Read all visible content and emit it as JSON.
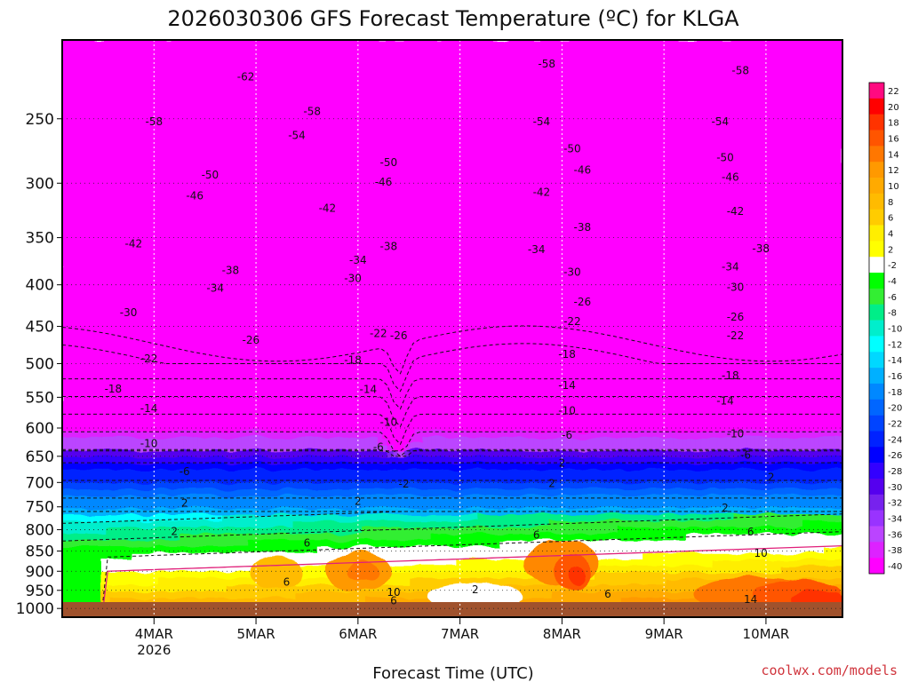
{
  "chart_data": {
    "type": "heatmap",
    "title": "2026030306 GFS Forecast Temperature (ºC) for KLGA",
    "xlabel": "Forecast Time (UTC)",
    "ylabel": "",
    "credit": "coolwx.com/models",
    "x_ticks": [
      {
        "label": "4MAR",
        "sublabel": "2026",
        "day": 4
      },
      {
        "label": "5MAR",
        "day": 5
      },
      {
        "label": "6MAR",
        "day": 6
      },
      {
        "label": "7MAR",
        "day": 7
      },
      {
        "label": "8MAR",
        "day": 8
      },
      {
        "label": "9MAR",
        "day": 9
      },
      {
        "label": "10MAR",
        "day": 10
      }
    ],
    "xlim_day": [
      3.1,
      10.75
    ],
    "y_ticks": [
      "250",
      "300",
      "350",
      "400",
      "450",
      "500",
      "550",
      "600",
      "650",
      "700",
      "750",
      "800",
      "850",
      "900",
      "950",
      "1000"
    ],
    "y_scale": "pressure (log)",
    "ylim_hpa": [
      1025,
      200
    ],
    "colorbar": {
      "levels": [
        22,
        20,
        18,
        16,
        14,
        12,
        10,
        8,
        6,
        4,
        2,
        -2,
        -4,
        -6,
        -8,
        -10,
        -12,
        -14,
        -16,
        -18,
        -20,
        -22,
        -24,
        -26,
        -28,
        -30,
        -32,
        -34,
        -36,
        -38,
        -40
      ],
      "colors": [
        "#ff0a80",
        "#ff0000",
        "#ff3300",
        "#ff5500",
        "#ff7700",
        "#ff9900",
        "#ffaa00",
        "#ffbb00",
        "#ffcc00",
        "#ffee00",
        "#ffff00",
        "#ffffff",
        "#00ff00",
        "#33ee33",
        "#00ee88",
        "#00eecc",
        "#00ffff",
        "#00d8ff",
        "#00b0ff",
        "#0088ff",
        "#0066ff",
        "#0044ff",
        "#0022ff",
        "#0000ff",
        "#3300ff",
        "#5500ee",
        "#7722ee",
        "#9933ff",
        "#bb44ff",
        "#dd22ff",
        "#ff00ff"
      ]
    },
    "contour_labels": [
      {
        "text": "-58",
        "day": 4.0,
        "hpa": 252
      },
      {
        "text": "-62",
        "day": 4.9,
        "hpa": 222
      },
      {
        "text": "-58",
        "day": 5.55,
        "hpa": 245
      },
      {
        "text": "-58",
        "day": 7.85,
        "hpa": 214
      },
      {
        "text": "-58",
        "day": 9.75,
        "hpa": 218
      },
      {
        "text": "-54",
        "day": 5.4,
        "hpa": 262
      },
      {
        "text": "-54",
        "day": 7.8,
        "hpa": 252
      },
      {
        "text": "-54",
        "day": 9.55,
        "hpa": 252
      },
      {
        "text": "-50",
        "day": 4.55,
        "hpa": 293
      },
      {
        "text": "-50",
        "day": 6.3,
        "hpa": 283
      },
      {
        "text": "-50",
        "day": 8.1,
        "hpa": 272
      },
      {
        "text": "-50",
        "day": 9.6,
        "hpa": 279
      },
      {
        "text": "-46",
        "day": 4.4,
        "hpa": 311
      },
      {
        "text": "-46",
        "day": 6.25,
        "hpa": 299
      },
      {
        "text": "-46",
        "day": 8.2,
        "hpa": 289
      },
      {
        "text": "-46",
        "day": 9.65,
        "hpa": 295
      },
      {
        "text": "-42",
        "day": 3.8,
        "hpa": 356
      },
      {
        "text": "-42",
        "day": 5.7,
        "hpa": 322
      },
      {
        "text": "-42",
        "day": 7.8,
        "hpa": 308
      },
      {
        "text": "-42",
        "day": 9.7,
        "hpa": 325
      },
      {
        "text": "-38",
        "day": 4.75,
        "hpa": 384
      },
      {
        "text": "-38",
        "day": 6.3,
        "hpa": 359
      },
      {
        "text": "-38",
        "day": 8.2,
        "hpa": 340
      },
      {
        "text": "-38",
        "day": 9.95,
        "hpa": 361
      },
      {
        "text": "-34",
        "day": 4.6,
        "hpa": 404
      },
      {
        "text": "-34",
        "day": 6.0,
        "hpa": 373
      },
      {
        "text": "-34",
        "day": 7.75,
        "hpa": 362
      },
      {
        "text": "-34",
        "day": 9.65,
        "hpa": 380
      },
      {
        "text": "-30",
        "day": 3.75,
        "hpa": 433
      },
      {
        "text": "-30",
        "day": 5.95,
        "hpa": 393
      },
      {
        "text": "-30",
        "day": 8.1,
        "hpa": 386
      },
      {
        "text": "-30",
        "day": 9.7,
        "hpa": 403
      },
      {
        "text": "-26",
        "day": 4.95,
        "hpa": 468
      },
      {
        "text": "-26",
        "day": 6.4,
        "hpa": 462
      },
      {
        "text": "-26",
        "day": 8.2,
        "hpa": 420
      },
      {
        "text": "-26",
        "day": 9.7,
        "hpa": 438
      },
      {
        "text": "-22",
        "day": 3.95,
        "hpa": 493
      },
      {
        "text": "-22",
        "day": 6.2,
        "hpa": 459
      },
      {
        "text": "-22",
        "day": 8.1,
        "hpa": 444
      },
      {
        "text": "-22",
        "day": 9.7,
        "hpa": 462
      },
      {
        "text": "-18",
        "day": 3.6,
        "hpa": 537
      },
      {
        "text": "-18",
        "day": 5.95,
        "hpa": 495
      },
      {
        "text": "-18",
        "day": 8.05,
        "hpa": 487
      },
      {
        "text": "-18",
        "day": 9.65,
        "hpa": 517
      },
      {
        "text": "-14",
        "day": 3.95,
        "hpa": 568
      },
      {
        "text": "-14",
        "day": 6.1,
        "hpa": 538
      },
      {
        "text": "-14",
        "day": 8.05,
        "hpa": 532
      },
      {
        "text": "-14",
        "day": 9.6,
        "hpa": 556
      },
      {
        "text": "-10",
        "day": 3.95,
        "hpa": 627
      },
      {
        "text": "-10",
        "day": 6.3,
        "hpa": 590
      },
      {
        "text": "-10",
        "day": 8.05,
        "hpa": 571
      },
      {
        "text": "-10",
        "day": 9.7,
        "hpa": 610
      },
      {
        "text": "-6",
        "day": 4.3,
        "hpa": 679
      },
      {
        "text": "-6",
        "day": 6.2,
        "hpa": 633
      },
      {
        "text": "-6",
        "day": 8.05,
        "hpa": 612
      },
      {
        "text": "-6",
        "day": 9.8,
        "hpa": 648
      },
      {
        "text": "-2",
        "day": 6.45,
        "hpa": 703
      },
      {
        "text": "2",
        "day": 8.0,
        "hpa": 663
      },
      {
        "text": "2",
        "day": 10.05,
        "hpa": 690
      },
      {
        "text": "2",
        "day": 4.3,
        "hpa": 742
      },
      {
        "text": "2",
        "day": 6.0,
        "hpa": 738
      },
      {
        "text": "2",
        "day": 7.9,
        "hpa": 702
      },
      {
        "text": "2",
        "day": 9.6,
        "hpa": 752
      },
      {
        "text": "2",
        "day": 4.2,
        "hpa": 804
      },
      {
        "text": "6",
        "day": 5.5,
        "hpa": 831
      },
      {
        "text": "6",
        "day": 7.75,
        "hpa": 812
      },
      {
        "text": "6",
        "day": 9.85,
        "hpa": 805
      },
      {
        "text": "6",
        "day": 5.3,
        "hpa": 928
      },
      {
        "text": "6",
        "day": 6.35,
        "hpa": 978
      },
      {
        "text": "6",
        "day": 8.45,
        "hpa": 960
      },
      {
        "text": "10",
        "day": 6.35,
        "hpa": 955
      },
      {
        "text": "10",
        "day": 9.95,
        "hpa": 855
      },
      {
        "text": "14",
        "day": 9.85,
        "hpa": 975
      },
      {
        "text": "2",
        "day": 7.15,
        "hpa": 948
      }
    ]
  }
}
